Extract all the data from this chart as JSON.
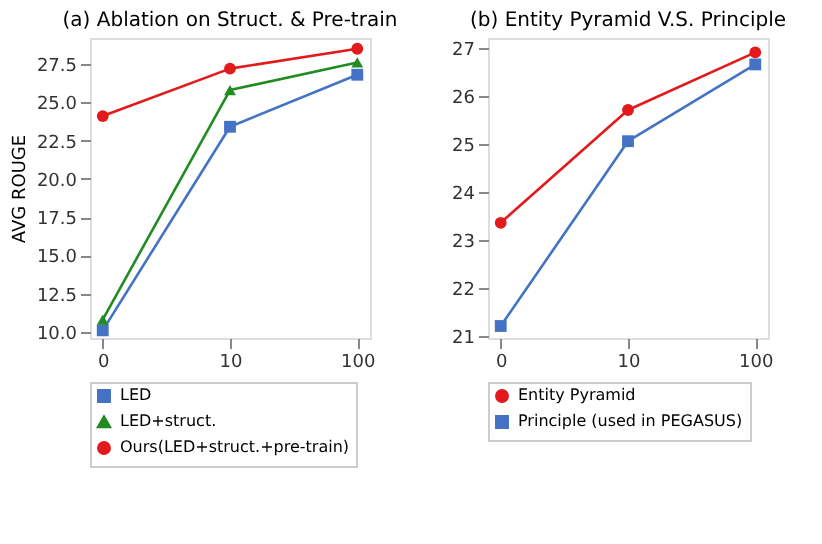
{
  "chart_data": [
    {
      "type": "line",
      "title": "(a) Ablation on Struct. & Pre-train",
      "ylabel": "AVG ROUGE",
      "categories": [
        "0",
        "10",
        "100"
      ],
      "series": [
        {
          "name": "LED",
          "color": "#4472c4",
          "marker": "square",
          "values": [
            10.1,
            23.4,
            26.8
          ]
        },
        {
          "name": "LED+struct.",
          "color": "#228b22",
          "marker": "triangle",
          "values": [
            10.8,
            25.8,
            27.6
          ]
        },
        {
          "name": "Ours(LED+struct.+pre-train)",
          "color": "#e31a1c",
          "marker": "circle",
          "values": [
            24.1,
            27.2,
            28.5
          ]
        }
      ],
      "ylim": [
        9.6,
        29.2
      ],
      "yticks": [
        {
          "value": 10,
          "label": "10.0"
        },
        {
          "value": 12.5,
          "label": "12.5"
        },
        {
          "value": 15,
          "label": "15.0"
        },
        {
          "value": 17.5,
          "label": "17.5"
        },
        {
          "value": 20,
          "label": "20.0"
        },
        {
          "value": 22.5,
          "label": "22.5"
        },
        {
          "value": 25,
          "label": "25.0"
        },
        {
          "value": 27.5,
          "label": "27.5"
        }
      ],
      "grid": false,
      "legend": "bottom"
    },
    {
      "type": "line",
      "title": "(b) Entity Pyramid V.S. Principle",
      "categories": [
        "0",
        "10",
        "100"
      ],
      "series": [
        {
          "name": "Entity Pyramid",
          "color": "#e31a1c",
          "marker": "circle",
          "values": [
            23.35,
            25.7,
            26.9
          ]
        },
        {
          "name": "Principle (used in PEGASUS)",
          "color": "#4472c4",
          "marker": "square",
          "values": [
            21.2,
            25.05,
            26.65
          ]
        }
      ],
      "ylim": [
        20.95,
        27.2
      ],
      "yticks": [
        21,
        22,
        23,
        24,
        25,
        26,
        27
      ],
      "grid": false,
      "legend": "bottom"
    }
  ]
}
